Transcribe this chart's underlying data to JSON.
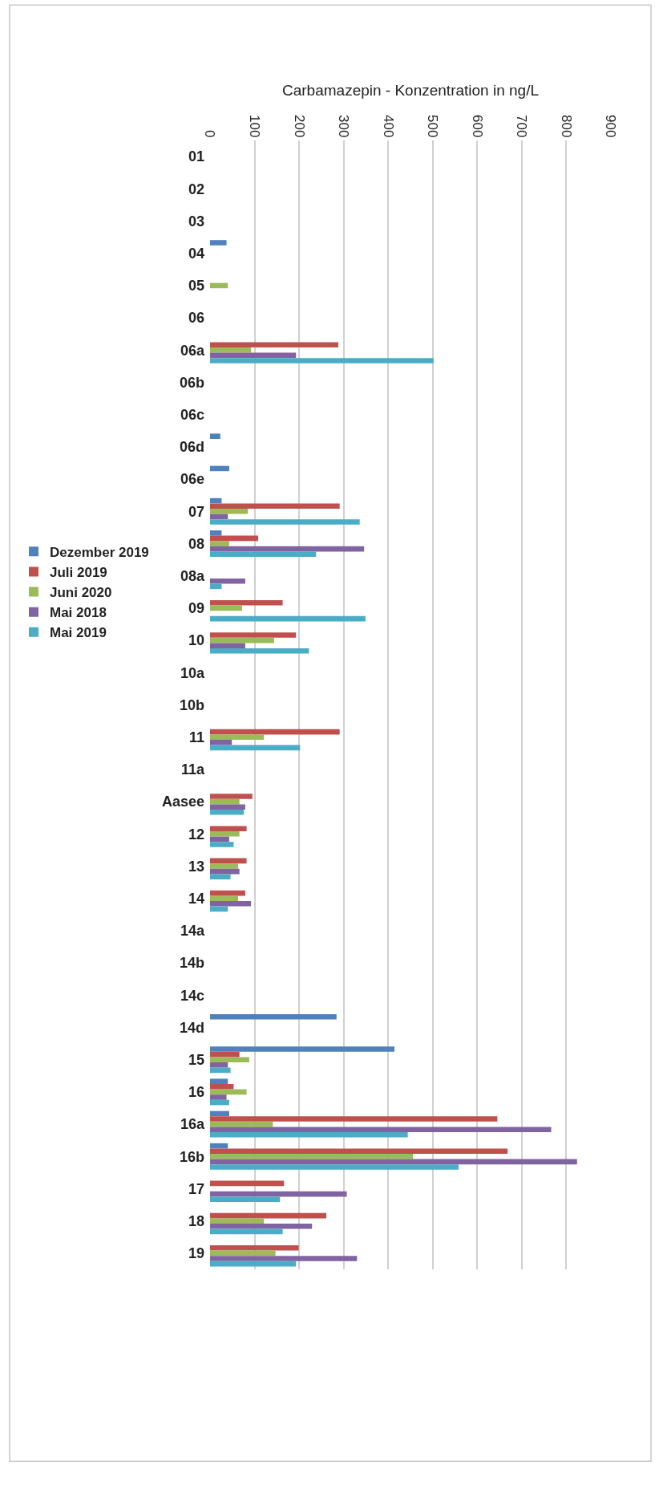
{
  "chart_data": {
    "type": "bar",
    "orientation": "horizontal",
    "xlabel": "Carbamazepin - Konzentration in ng/L",
    "categories": [
      "01",
      "02",
      "03",
      "04",
      "05",
      "06",
      "06a",
      "06b",
      "06c",
      "06d",
      "06e",
      "07",
      "08",
      "08a",
      "09",
      "10",
      "10a",
      "10b",
      "11",
      "11a",
      "Aasee",
      "12",
      "13",
      "14",
      "14a",
      "14b",
      "14c",
      "14d",
      "15",
      "16",
      "16a",
      "16b",
      "17",
      "18",
      "19"
    ],
    "series": [
      {
        "name": "Dezember 2019",
        "color": "#4f81bd",
        "values": [
          null,
          null,
          null,
          37,
          null,
          null,
          null,
          null,
          null,
          23,
          43,
          26,
          26,
          null,
          null,
          null,
          null,
          null,
          null,
          null,
          null,
          null,
          null,
          null,
          null,
          null,
          null,
          284,
          414,
          40,
          43,
          40,
          null,
          null,
          null
        ]
      },
      {
        "name": "Juli 2019",
        "color": "#c0504d",
        "values": [
          null,
          null,
          null,
          null,
          null,
          null,
          288,
          null,
          null,
          null,
          null,
          291,
          108,
          null,
          163,
          193,
          null,
          null,
          291,
          null,
          95,
          82,
          82,
          79,
          null,
          null,
          null,
          null,
          66,
          53,
          645,
          668,
          166,
          261,
          199
        ]
      },
      {
        "name": "Juni 2020",
        "color": "#9bbb59",
        "values": [
          null,
          null,
          null,
          null,
          40,
          null,
          92,
          null,
          null,
          null,
          null,
          85,
          43,
          null,
          72,
          144,
          null,
          null,
          121,
          null,
          66,
          66,
          63,
          63,
          null,
          null,
          null,
          null,
          88,
          82,
          141,
          456,
          null,
          121,
          147
        ]
      },
      {
        "name": "Mai 2018",
        "color": "#8064a2",
        "values": [
          null,
          null,
          null,
          null,
          null,
          null,
          193,
          null,
          null,
          null,
          null,
          40,
          346,
          79,
          null,
          79,
          null,
          null,
          49,
          null,
          79,
          43,
          66,
          92,
          null,
          null,
          null,
          null,
          40,
          37,
          766,
          824,
          307,
          229,
          330
        ]
      },
      {
        "name": "Mai 2019",
        "color": "#4bacc6",
        "values": [
          null,
          null,
          null,
          null,
          null,
          null,
          502,
          null,
          null,
          null,
          null,
          336,
          238,
          26,
          349,
          222,
          null,
          null,
          202,
          null,
          76,
          53,
          46,
          40,
          null,
          null,
          null,
          null,
          46,
          43,
          444,
          558,
          157,
          163,
          193
        ]
      }
    ],
    "xlim": [
      0,
      900
    ],
    "xticks": [
      0,
      100,
      200,
      300,
      400,
      500,
      600,
      700,
      800,
      900
    ],
    "grid": "x",
    "legend": "left"
  }
}
